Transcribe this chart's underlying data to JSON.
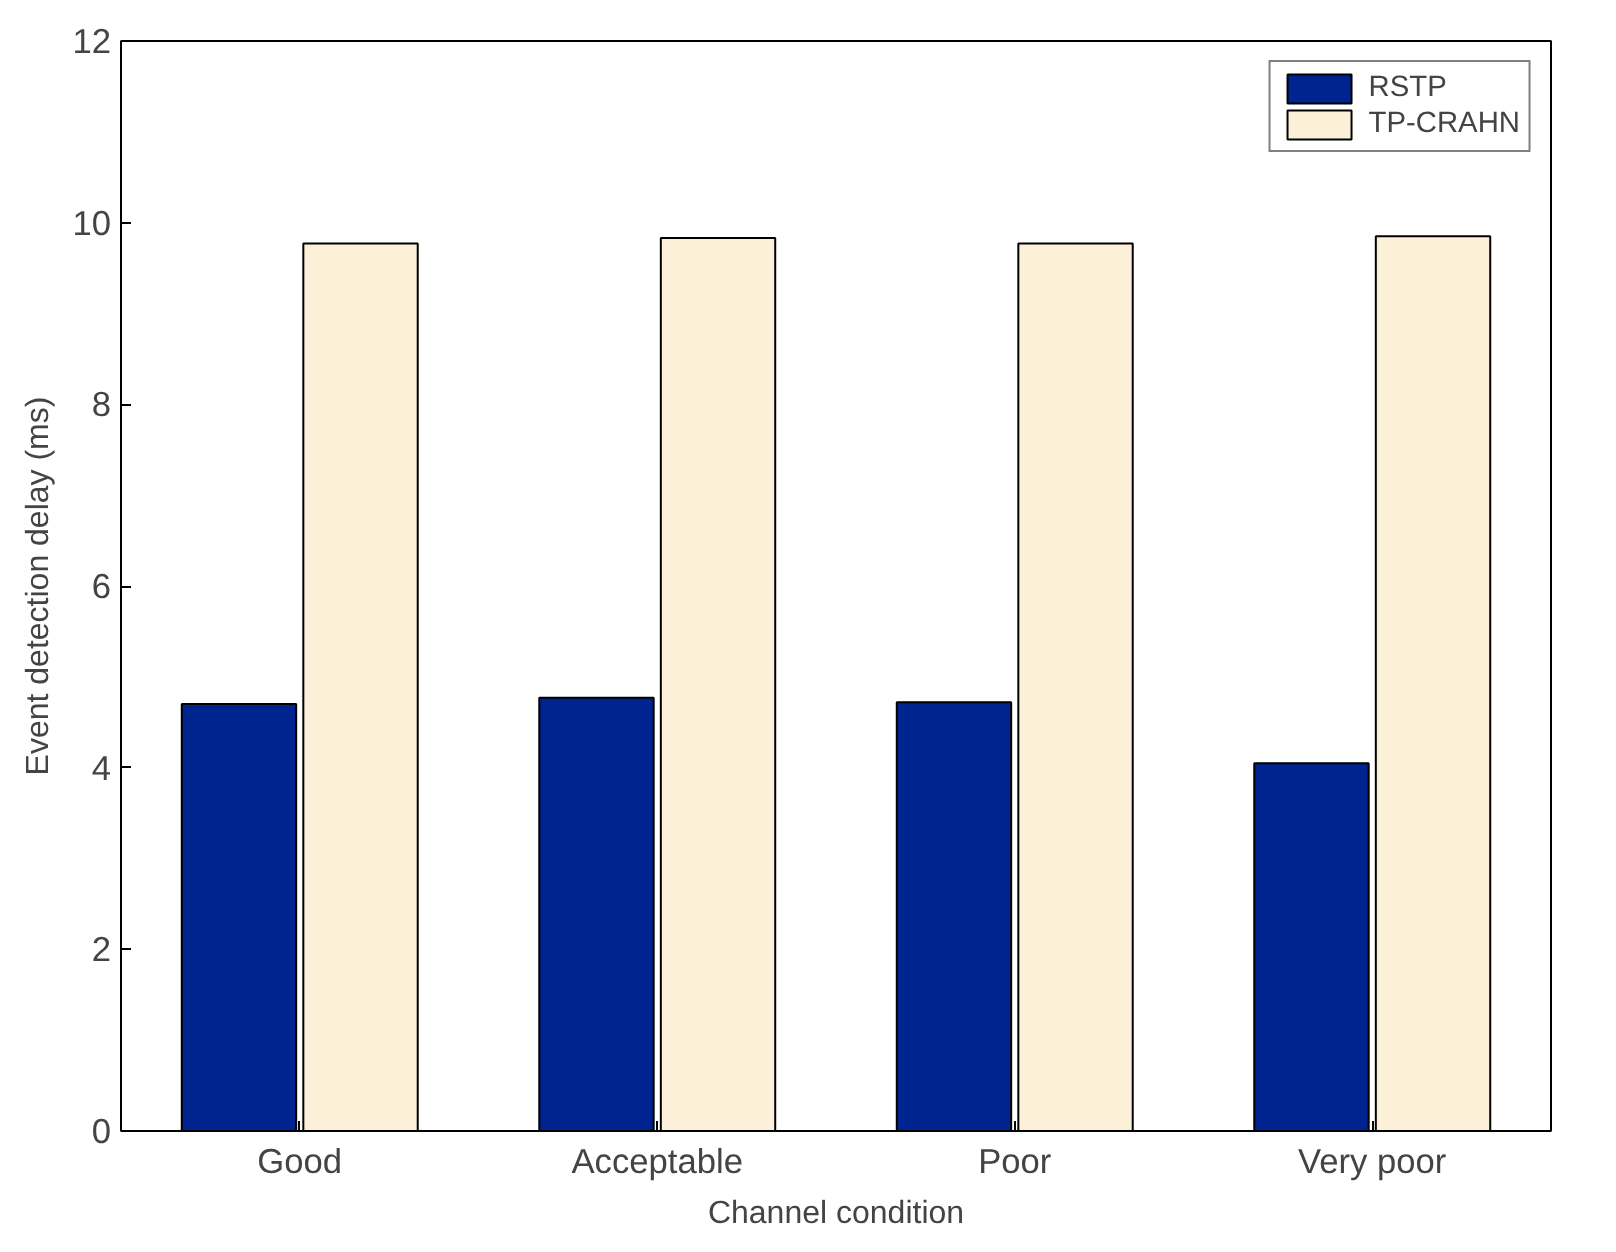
{
  "chart_data": {
    "type": "bar",
    "xlabel": "Channel condition",
    "ylabel": "Event detection delay (ms)",
    "categories": [
      "Good",
      "Acceptable",
      "Poor",
      "Very poor"
    ],
    "series": [
      {
        "name": "RSTP",
        "color": "#00248f",
        "values": [
          4.7,
          4.77,
          4.72,
          4.05
        ]
      },
      {
        "name": "TP-CRAHN",
        "color": "#fdf0d9",
        "values": [
          9.77,
          9.83,
          9.77,
          9.85
        ]
      }
    ],
    "ylim": [
      0,
      12
    ],
    "yticks": [
      0,
      2,
      4,
      6,
      8,
      10,
      12
    ],
    "grid": false,
    "legend": "top right"
  }
}
